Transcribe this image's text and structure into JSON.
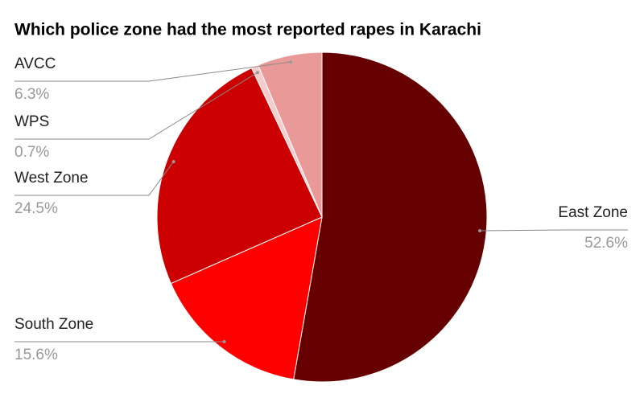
{
  "chart_data": {
    "type": "pie",
    "title": "Which police zone had the most reported rapes in Karachi",
    "categories": [
      "East Zone",
      "South Zone",
      "West Zone",
      "WPS",
      "AVCC"
    ],
    "values": [
      52.6,
      15.6,
      24.5,
      0.7,
      6.3
    ],
    "value_labels": [
      "52.6%",
      "15.6%",
      "24.5%",
      "0.7%",
      "6.3%"
    ],
    "colors": [
      "#660000",
      "#ff0000",
      "#cc0000",
      "#f4cccc",
      "#ea9999"
    ]
  }
}
